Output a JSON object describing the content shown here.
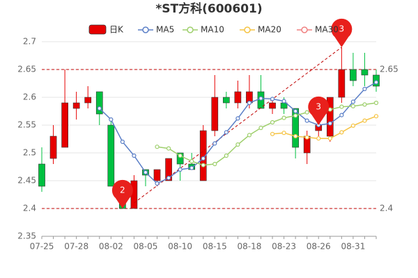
{
  "chart_data": {
    "type": "candlestick",
    "title": "*ST方科(600601)",
    "categories": [
      "07-25",
      null,
      null,
      "07-28",
      null,
      null,
      "08-02",
      null,
      null,
      "08-05",
      null,
      null,
      "08-10",
      null,
      null,
      "08-15",
      null,
      null,
      "08-18",
      null,
      null,
      "08-23",
      null,
      null,
      "08-26",
      null,
      null,
      "08-31",
      null,
      null
    ],
    "candles": {
      "name": "日K",
      "up_color": "#e60000",
      "down_color": "#00c040",
      "open": [
        2.48,
        2.49,
        2.51,
        2.58,
        2.59,
        2.61,
        2.55,
        2.43,
        2.4,
        2.47,
        2.45,
        2.45,
        2.5,
        2.48,
        2.45,
        2.54,
        2.6,
        2.59,
        2.59,
        2.61,
        2.58,
        2.59,
        2.58,
        2.5,
        2.54,
        2.53,
        2.6,
        2.65,
        2.65,
        2.64
      ],
      "high": [
        2.51,
        2.55,
        2.65,
        2.61,
        2.62,
        2.61,
        2.56,
        2.44,
        2.46,
        2.47,
        2.47,
        2.49,
        2.5,
        2.5,
        2.55,
        2.64,
        2.61,
        2.63,
        2.64,
        2.64,
        2.6,
        2.6,
        2.58,
        2.54,
        2.57,
        2.6,
        2.69,
        2.68,
        2.68,
        2.65
      ],
      "low": [
        2.43,
        2.48,
        2.51,
        2.56,
        2.58,
        2.55,
        2.44,
        2.4,
        2.4,
        2.44,
        2.44,
        2.45,
        2.45,
        2.47,
        2.45,
        2.53,
        2.58,
        2.58,
        2.58,
        2.58,
        2.57,
        2.57,
        2.49,
        2.48,
        2.53,
        2.52,
        2.59,
        2.62,
        2.62,
        2.61
      ],
      "close": [
        2.44,
        2.53,
        2.59,
        2.59,
        2.6,
        2.57,
        2.44,
        2.4,
        2.45,
        2.46,
        2.47,
        2.49,
        2.48,
        2.47,
        2.54,
        2.6,
        2.59,
        2.61,
        2.61,
        2.58,
        2.59,
        2.58,
        2.51,
        2.53,
        2.55,
        2.6,
        2.65,
        2.63,
        2.64,
        2.62
      ]
    },
    "series": [
      {
        "name": "MA5",
        "color": "#5b7fc7",
        "values": [
          null,
          null,
          null,
          null,
          null,
          2.58,
          2.56,
          2.52,
          2.495,
          2.465,
          2.445,
          2.455,
          2.47,
          2.473,
          2.49,
          2.517,
          2.537,
          2.562,
          2.59,
          2.598,
          2.597,
          2.593,
          2.575,
          2.558,
          2.55,
          2.553,
          2.568,
          2.592,
          2.615,
          2.627
        ]
      },
      {
        "name": "MA10",
        "color": "#9ecf6c",
        "values": [
          null,
          null,
          null,
          null,
          null,
          null,
          null,
          null,
          null,
          null,
          2.511,
          2.508,
          2.495,
          2.485,
          2.478,
          2.48,
          2.495,
          2.515,
          2.532,
          2.545,
          2.555,
          2.563,
          2.567,
          2.573,
          2.578,
          2.578,
          2.583,
          2.584,
          2.587,
          2.59
        ]
      },
      {
        "name": "MA20",
        "color": "#f5c342",
        "values": [
          null,
          null,
          null,
          null,
          null,
          null,
          null,
          null,
          null,
          null,
          null,
          null,
          null,
          null,
          null,
          null,
          null,
          null,
          null,
          null,
          2.534,
          2.536,
          2.53,
          2.528,
          2.526,
          2.526,
          2.537,
          2.549,
          2.558,
          2.566
        ]
      },
      {
        "name": "MA30",
        "color": "#f08080",
        "values": [
          null,
          null,
          null,
          null,
          null,
          null,
          null,
          null,
          null,
          null,
          null,
          null,
          null,
          null,
          null,
          null,
          null,
          null,
          null,
          null,
          null,
          null,
          null,
          null,
          null,
          null,
          null,
          null,
          null,
          null
        ]
      }
    ],
    "ylim": [
      2.35,
      2.7
    ],
    "yticks": [
      2.35,
      2.4,
      2.45,
      2.5,
      2.55,
      2.6,
      2.65,
      2.7
    ],
    "grid": true,
    "ref_lines": [
      2.65,
      2.4
    ],
    "ref_color": "#c00000",
    "trend_line": {
      "from_index": 8,
      "from": 2.41,
      "to_index": 26,
      "to": 2.69
    },
    "markers": [
      {
        "label": "2",
        "index": 7,
        "value": 2.4
      },
      {
        "label": "3",
        "index": 24,
        "value": 2.55
      },
      {
        "label": "3",
        "index": 26,
        "value": 2.69
      }
    ]
  }
}
